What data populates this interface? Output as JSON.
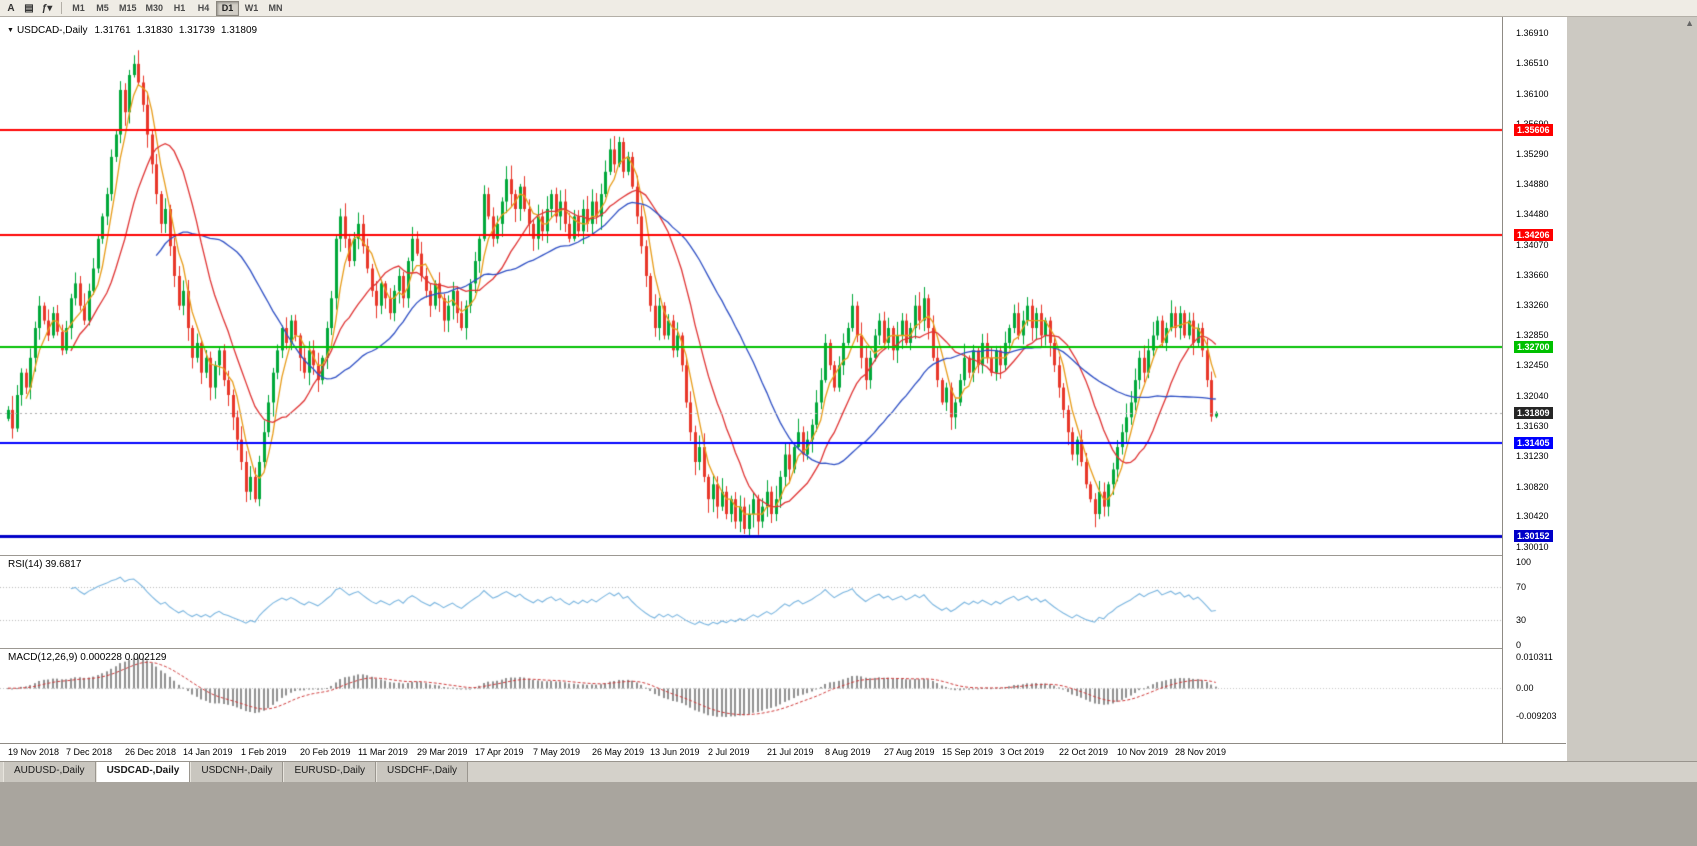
{
  "toolbar": {
    "left_buttons": [
      {
        "name": "text-tool",
        "glyph": "A"
      },
      {
        "name": "chart-type",
        "glyph": "▤"
      },
      {
        "name": "quick-menu",
        "glyph": "ƒ▾"
      }
    ],
    "timeframes": [
      "M1",
      "M5",
      "M15",
      "M30",
      "H1",
      "H4",
      "D1",
      "W1",
      "MN"
    ],
    "active": "D1"
  },
  "icons": {
    "header_arrow": "▼",
    "scroll_up": "▲"
  },
  "header": {
    "symbol": "USDCAD-,Daily",
    "open": "1.31761",
    "high": "1.31830",
    "low": "1.31739",
    "close": "1.31809"
  },
  "chart_data": {
    "type": "candlestick",
    "title": "USDCAD-,Daily",
    "ohlc_last": {
      "o": 1.31761,
      "h": 1.3183,
      "l": 1.31739,
      "c": 1.31809
    },
    "y_view_max": 1.3713,
    "y_view_min": 1.299,
    "y_ticks": [
      "1.36910",
      "1.36510",
      "1.36100",
      "1.35690",
      "1.35290",
      "1.34880",
      "1.34480",
      "1.34070",
      "1.33660",
      "1.33260",
      "1.32850",
      "1.32450",
      "1.32040",
      "1.31630",
      "1.31230",
      "1.30820",
      "1.30420",
      "1.30010"
    ],
    "h_lines": [
      {
        "value": 1.35606,
        "label": "1.35606",
        "color": "#fe0000",
        "width": 2
      },
      {
        "value": 1.34206,
        "label": "1.34206",
        "color": "#fe0000",
        "width": 2
      },
      {
        "value": 1.327,
        "label": "1.32700",
        "color": "#00c000",
        "width": 2
      },
      {
        "value": 1.31405,
        "label": "1.31405",
        "color": "#0000fe",
        "width": 2
      },
      {
        "value": 1.30152,
        "label": "1.30152",
        "color": "#0000c8",
        "width": 3
      }
    ],
    "current_price": {
      "value": 1.31809,
      "label": "1.31809"
    },
    "colors": {
      "up": "#00a83a",
      "down": "#e8372a",
      "ma_fast": "#e79c19",
      "ma_mid": "#df3333",
      "ma_slow": "#2e4fc4",
      "rsi": "#7ab5df",
      "macd_hist": "#909090",
      "macd_signal": "#cf3a3a",
      "current_line": "#aaaaaa",
      "current_badge": "#262626"
    },
    "moving_averages": [
      {
        "period": 5,
        "color_key": "ma_fast"
      },
      {
        "period": 15,
        "color_key": "ma_mid"
      },
      {
        "period": 34,
        "color_key": "ma_slow"
      }
    ],
    "x_label_interval": 13,
    "x_labels": [
      "19 Nov 2018",
      "7 Dec 2018",
      "26 Dec 2018",
      "14 Jan 2019",
      "1 Feb 2019",
      "20 Feb 2019",
      "11 Mar 2019",
      "29 Mar 2019",
      "17 Apr 2019",
      "7 May 2019",
      "26 May 2019",
      "13 Jun 2019",
      "2 Jul 2019",
      "21 Jul 2019",
      "8 Aug 2019",
      "27 Aug 2019",
      "15 Sep 2019",
      "3 Oct 2019",
      "22 Oct 2019",
      "10 Nov 2019",
      "28 Nov 2019"
    ],
    "closes": [
      1.3185,
      1.316,
      1.3205,
      1.3235,
      1.3215,
      1.3255,
      1.3295,
      1.3325,
      1.3305,
      1.3285,
      1.3315,
      1.329,
      1.3265,
      1.3295,
      1.3335,
      1.3355,
      1.3325,
      1.3305,
      1.3345,
      1.3375,
      1.3415,
      1.3445,
      1.3475,
      1.3525,
      1.3555,
      1.3615,
      1.3585,
      1.3635,
      1.365,
      1.3625,
      1.3595,
      1.3555,
      1.3515,
      1.3475,
      1.3435,
      1.3455,
      1.3405,
      1.3365,
      1.3325,
      1.3345,
      1.3295,
      1.3255,
      1.3275,
      1.3235,
      1.3255,
      1.3215,
      1.3245,
      1.3265,
      1.3225,
      1.3205,
      1.3175,
      1.3145,
      1.3115,
      1.3075,
      1.3095,
      1.3065,
      1.3115,
      1.3155,
      1.3195,
      1.3235,
      1.3265,
      1.3295,
      1.3275,
      1.3305,
      1.3285,
      1.3255,
      1.3235,
      1.3265,
      1.3245,
      1.3225,
      1.3255,
      1.3295,
      1.3335,
      1.3415,
      1.3445,
      1.3415,
      1.3385,
      1.3415,
      1.3435,
      1.3405,
      1.3375,
      1.3345,
      1.3325,
      1.3355,
      1.3335,
      1.3315,
      1.3345,
      1.3365,
      1.3335,
      1.3385,
      1.3415,
      1.3395,
      1.3365,
      1.3345,
      1.3325,
      1.3355,
      1.3335,
      1.3305,
      1.3325,
      1.3345,
      1.3315,
      1.3295,
      1.3325,
      1.3355,
      1.3385,
      1.3415,
      1.3475,
      1.3445,
      1.3415,
      1.3435,
      1.3465,
      1.3495,
      1.3475,
      1.3455,
      1.3485,
      1.3455,
      1.3435,
      1.3415,
      1.3445,
      1.3425,
      1.3455,
      1.3475,
      1.3445,
      1.3465,
      1.3435,
      1.3415,
      1.3445,
      1.3425,
      1.3455,
      1.3435,
      1.3465,
      1.3445,
      1.3475,
      1.3505,
      1.3535,
      1.3515,
      1.3545,
      1.3505,
      1.3525,
      1.3485,
      1.3445,
      1.3405,
      1.3365,
      1.3325,
      1.3295,
      1.3325,
      1.3285,
      1.3305,
      1.3265,
      1.3285,
      1.3245,
      1.3195,
      1.3155,
      1.3115,
      1.3135,
      1.3095,
      1.3065,
      1.3085,
      1.3055,
      1.3075,
      1.3045,
      1.3065,
      1.3035,
      1.3055,
      1.3025,
      1.3045,
      1.3065,
      1.3035,
      1.3055,
      1.3075,
      1.3045,
      1.3065,
      1.3095,
      1.3125,
      1.3105,
      1.3135,
      1.3155,
      1.3125,
      1.3145,
      1.3165,
      1.3195,
      1.3225,
      1.3275,
      1.3245,
      1.3215,
      1.3245,
      1.3275,
      1.3295,
      1.3325,
      1.3285,
      1.3255,
      1.3225,
      1.3255,
      1.3285,
      1.3305,
      1.3275,
      1.3295,
      1.3265,
      1.3285,
      1.3305,
      1.3275,
      1.3295,
      1.3325,
      1.3305,
      1.3335,
      1.3295,
      1.3255,
      1.3225,
      1.3195,
      1.3215,
      1.3175,
      1.3195,
      1.3225,
      1.3255,
      1.3235,
      1.3265,
      1.3245,
      1.3275,
      1.3255,
      1.3235,
      1.3265,
      1.3245,
      1.3275,
      1.3295,
      1.3315,
      1.3285,
      1.3305,
      1.3325,
      1.3295,
      1.3315,
      1.3285,
      1.3305,
      1.3275,
      1.3245,
      1.3215,
      1.3185,
      1.3155,
      1.3125,
      1.3145,
      1.3115,
      1.3085,
      1.3065,
      1.3045,
      1.3075,
      1.3055,
      1.3085,
      1.3105,
      1.3135,
      1.3155,
      1.3175,
      1.3195,
      1.3225,
      1.3255,
      1.3235,
      1.3265,
      1.3285,
      1.3305,
      1.3275,
      1.3295,
      1.3315,
      1.3295,
      1.3315,
      1.3285,
      1.3305,
      1.3275,
      1.3295,
      1.3265,
      1.3225,
      1.3176,
      1.31809
    ],
    "subcharts": [
      {
        "name": "RSI",
        "type": "line",
        "title": "RSI(14) 39.6817",
        "period": 14,
        "last_value": 39.6817,
        "level_lines": [
          70,
          30
        ],
        "y_axis": [
          {
            "label": "100",
            "value": 100
          },
          {
            "label": "70",
            "value": 70
          },
          {
            "label": "30",
            "value": 30
          },
          {
            "label": "0",
            "value": 0
          }
        ]
      },
      {
        "name": "MACD",
        "type": "macd",
        "title": "MACD(12,26,9) 0.000228 0.002129",
        "params": [
          12,
          26,
          9
        ],
        "main_last": 0.000228,
        "signal_last": 0.002129,
        "scale_max": 0.0129,
        "scale_min": -0.0181,
        "y_axis": [
          {
            "label": "0.010311",
            "value": 0.010311
          },
          {
            "label": "0.00",
            "value": 0
          },
          {
            "label": "-0.009203",
            "value": -0.009203
          }
        ]
      }
    ]
  },
  "bottom_tabs": [
    {
      "label": "AUDUSD-,Daily",
      "active": false
    },
    {
      "label": "USDCAD-,Daily",
      "active": true
    },
    {
      "label": "USDCNH-,Daily",
      "active": false
    },
    {
      "label": "EURUSD-,Daily",
      "active": false
    },
    {
      "label": "USDCHF-,Daily",
      "active": false
    }
  ]
}
